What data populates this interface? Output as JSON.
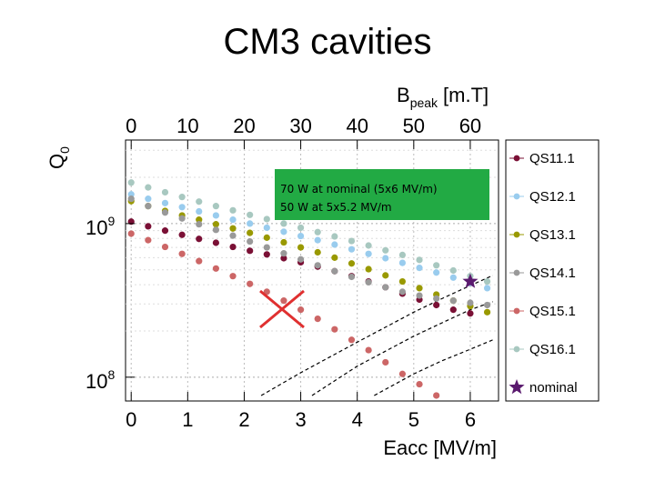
{
  "slide": {
    "title": "CM3 cavities"
  },
  "chart_data": {
    "type": "scatter",
    "title": "",
    "xlabel": "Eacc [MV/m]",
    "ylabel": "Q0",
    "ylabel_main": "Q",
    "ylabel_sub": "0",
    "top_axis_label_main": "B",
    "top_axis_label_sub": "peak",
    "top_axis_label_unit": "[m.T]",
    "xlim": [
      -0.1,
      6.5
    ],
    "ylim": [
      70000000,
      3500000000
    ],
    "yscale": "log",
    "grid": true,
    "legend_position": "right",
    "x_ticks": [
      "0",
      "1",
      "2",
      "3",
      "4",
      "5",
      "6"
    ],
    "top_ticks": [
      "0",
      "10",
      "20",
      "30",
      "40",
      "50",
      "60"
    ],
    "y_ticks": [
      {
        "value": 1000000000,
        "base": "10",
        "exp": "9"
      },
      {
        "value": 100000000,
        "base": "10",
        "exp": "8"
      }
    ],
    "series": [
      {
        "name": "QS11.1",
        "color": "#7a1035",
        "x": [
          0,
          0.3,
          0.6,
          0.9,
          1.2,
          1.5,
          1.8,
          2.1,
          2.4,
          2.7,
          3.0,
          3.3,
          3.6,
          3.9,
          4.2,
          4.5,
          4.8,
          5.1,
          5.4,
          5.7,
          6.0
        ],
        "y": [
          1030000000.0,
          960000000.0,
          900000000.0,
          845000000.0,
          795000000.0,
          750000000.0,
          705000000.0,
          665000000.0,
          630000000.0,
          595000000.0,
          560000000.0,
          525000000.0,
          490000000.0,
          455000000.0,
          420000000.0,
          385000000.0,
          350000000.0,
          320000000.0,
          295000000.0,
          275000000.0,
          260000000.0
        ]
      },
      {
        "name": "QS12.1",
        "color": "#99ccee",
        "x": [
          0,
          0.3,
          0.6,
          0.9,
          1.2,
          1.5,
          1.8,
          2.1,
          2.4,
          2.7,
          3.0,
          3.3,
          3.6,
          3.9,
          4.2,
          4.5,
          4.8,
          5.1,
          5.4,
          5.7,
          6.0,
          6.3
        ],
        "y": [
          1550000000.0,
          1450000000.0,
          1360000000.0,
          1280000000.0,
          1200000000.0,
          1130000000.0,
          1060000000.0,
          1000000000.0,
          940000000.0,
          885000000.0,
          830000000.0,
          780000000.0,
          730000000.0,
          680000000.0,
          635000000.0,
          595000000.0,
          555000000.0,
          515000000.0,
          480000000.0,
          445000000.0,
          410000000.0,
          380000000.0
        ]
      },
      {
        "name": "QS13.1",
        "color": "#999900",
        "x": [
          0,
          0.3,
          0.6,
          0.9,
          1.2,
          1.5,
          1.8,
          2.1,
          2.4,
          2.7,
          3.0,
          3.3,
          3.6,
          3.9,
          4.2,
          4.5,
          4.8,
          5.1,
          5.4,
          5.7,
          6.0,
          6.3
        ],
        "y": [
          1400000000.0,
          1300000000.0,
          1210000000.0,
          1130000000.0,
          1060000000.0,
          990000000.0,
          930000000.0,
          870000000.0,
          810000000.0,
          755000000.0,
          700000000.0,
          650000000.0,
          600000000.0,
          550000000.0,
          505000000.0,
          460000000.0,
          420000000.0,
          380000000.0,
          345000000.0,
          315000000.0,
          290000000.0,
          265000000.0
        ]
      },
      {
        "name": "QS14.1",
        "color": "#999999",
        "x": [
          0,
          0.3,
          0.6,
          0.9,
          1.2,
          1.5,
          1.8,
          2.1,
          2.4,
          2.7,
          3.0,
          3.3,
          3.6,
          3.9,
          4.2,
          4.5,
          4.8,
          5.1,
          5.4,
          5.7,
          6.0,
          6.3
        ],
        "y": [
          1450000000.0,
          1300000000.0,
          1180000000.0,
          1080000000.0,
          990000000.0,
          910000000.0,
          835000000.0,
          765000000.0,
          700000000.0,
          640000000.0,
          585000000.0,
          535000000.0,
          490000000.0,
          450000000.0,
          415000000.0,
          385000000.0,
          360000000.0,
          340000000.0,
          325000000.0,
          315000000.0,
          305000000.0,
          295000000.0
        ]
      },
      {
        "name": "QS15.1",
        "color": "#cc6666",
        "x": [
          0,
          0.3,
          0.6,
          0.9,
          1.2,
          1.5,
          1.8,
          2.1,
          2.4,
          2.7,
          3.0,
          3.3,
          3.6,
          3.9,
          4.2,
          4.5,
          4.8,
          5.1,
          5.4
        ],
        "y": [
          860000000.0,
          780000000.0,
          705000000.0,
          635000000.0,
          570000000.0,
          510000000.0,
          455000000.0,
          405000000.0,
          360000000.0,
          315000000.0,
          275000000.0,
          240000000.0,
          205000000.0,
          175000000.0,
          150000000.0,
          125000000.0,
          105000000.0,
          90000000.0,
          76000000.0
        ]
      },
      {
        "name": "QS16.1",
        "color": "#a8c8c0",
        "x": [
          0,
          0.3,
          0.6,
          0.9,
          1.2,
          1.5,
          1.8,
          2.1,
          2.4,
          2.7,
          3.0,
          3.3,
          3.6,
          3.9,
          4.2,
          4.5,
          4.8,
          5.1,
          5.4,
          5.7,
          6.0,
          6.3
        ],
        "y": [
          1850000000.0,
          1720000000.0,
          1600000000.0,
          1490000000.0,
          1390000000.0,
          1300000000.0,
          1220000000.0,
          1140000000.0,
          1070000000.0,
          1000000000.0,
          940000000.0,
          880000000.0,
          825000000.0,
          770000000.0,
          720000000.0,
          670000000.0,
          625000000.0,
          580000000.0,
          535000000.0,
          495000000.0,
          455000000.0,
          420000000.0
        ]
      }
    ],
    "nominal": {
      "name": "nominal",
      "color": "#5a1a6e",
      "x": 6.0,
      "y": 420000000.0
    },
    "crossed_out_series": [
      "QS15.1"
    ],
    "annotation": {
      "line1": "70 W at nominal (5x6 MV/m)",
      "line2": "50 W at 5x5.2 MV/m",
      "bg_color": "#22aa44"
    },
    "power_curves": [
      {
        "x": [
          2.3,
          3.0,
          4.0,
          5.0,
          5.5,
          6.0,
          6.4
        ],
        "y": [
          76000000.0,
          107000000.0,
          169000000.0,
          265000000.0,
          325000000.0,
          395000000.0,
          460000000.0
        ]
      },
      {
        "x": [
          3.2,
          4.0,
          5.0,
          5.6,
          6.0,
          6.4
        ],
        "y": [
          76000000.0,
          118000000.0,
          185000000.0,
          235000000.0,
          275000000.0,
          310000000.0
        ]
      },
      {
        "x": [
          4.3,
          5.0,
          5.5,
          6.0,
          6.4
        ],
        "y": [
          76000000.0,
          105000000.0,
          128000000.0,
          152000000.0,
          175000000.0
        ]
      }
    ],
    "cross_color": "#e03030"
  }
}
